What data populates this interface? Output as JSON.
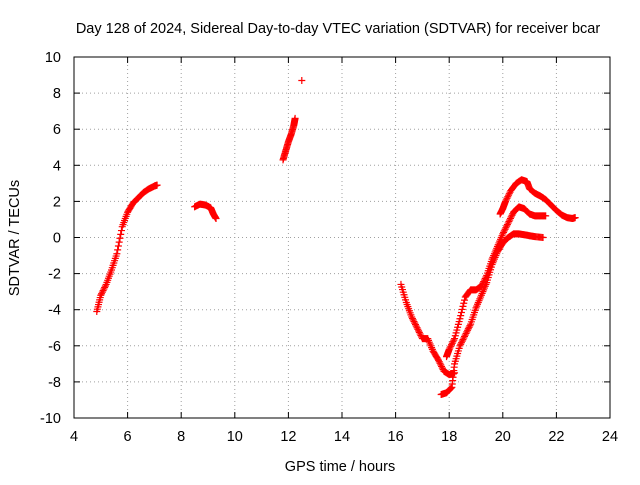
{
  "chart_data": {
    "type": "scatter",
    "title": "Day 128 of 2024, Sidereal Day-to-day VTEC variation (SDTVAR) for receiver bcar",
    "xlabel": "GPS time / hours",
    "ylabel": "SDTVAR / TECUs",
    "xlim": [
      4,
      24
    ],
    "ylim": [
      -10,
      10
    ],
    "x_ticks": [
      4,
      6,
      8,
      10,
      12,
      14,
      16,
      18,
      20,
      22,
      24
    ],
    "y_ticks": [
      10,
      8,
      6,
      4,
      2,
      0,
      -2,
      -4,
      -6,
      -8,
      -10
    ],
    "grid": true,
    "marker": "+",
    "color": "#ff0000",
    "series": [
      {
        "name": "segment-1",
        "x": [
          4.85,
          5.0,
          5.2,
          5.4,
          5.6,
          5.8,
          6.0,
          6.2,
          6.4,
          6.6,
          6.8,
          7.0,
          7.1
        ],
        "y": [
          -4.1,
          -3.2,
          -2.6,
          -1.8,
          -0.9,
          0.6,
          1.4,
          1.9,
          2.2,
          2.5,
          2.7,
          2.85,
          2.9
        ]
      },
      {
        "name": "segment-2",
        "x": [
          8.5,
          8.7,
          8.9,
          9.1,
          9.2,
          9.3
        ],
        "y": [
          1.7,
          1.85,
          1.8,
          1.65,
          1.3,
          1.05
        ]
      },
      {
        "name": "segment-3",
        "x": [
          11.8,
          11.9,
          12.0,
          12.1,
          12.2,
          12.25
        ],
        "y": [
          4.3,
          4.8,
          5.3,
          5.7,
          6.2,
          6.6
        ]
      },
      {
        "name": "segment-4",
        "x": [
          12.5
        ],
        "y": [
          8.7
        ]
      },
      {
        "name": "segment-5",
        "x": [
          16.2,
          16.4,
          16.6,
          16.8,
          17.0,
          17.2,
          17.4,
          17.6,
          17.8,
          18.0,
          18.2
        ],
        "y": [
          -2.6,
          -3.6,
          -4.4,
          -5.0,
          -5.6,
          -5.6,
          -6.3,
          -6.8,
          -7.4,
          -7.6,
          -7.5
        ]
      },
      {
        "name": "segment-6",
        "x": [
          17.7,
          17.9,
          18.1,
          18.2,
          18.4,
          18.6,
          18.8,
          19.0,
          19.2,
          19.4,
          19.6,
          19.8,
          20.0,
          20.2,
          20.4,
          20.6,
          20.8,
          21.0,
          21.2,
          21.5
        ],
        "y": [
          -8.7,
          -8.6,
          -8.3,
          -7.0,
          -6.0,
          -5.4,
          -4.8,
          -3.9,
          -3.2,
          -2.5,
          -1.5,
          -0.8,
          -0.3,
          0.0,
          0.2,
          0.2,
          0.15,
          0.1,
          0.05,
          0.0
        ]
      },
      {
        "name": "segment-7",
        "x": [
          17.9,
          18.0,
          18.2,
          18.4,
          18.6,
          18.8,
          19.0,
          19.2,
          19.4,
          19.6,
          19.8,
          20.0,
          20.2,
          20.4,
          20.6,
          20.8,
          21.0,
          21.2,
          21.4,
          21.6
        ],
        "y": [
          -6.6,
          -6.2,
          -5.6,
          -4.5,
          -3.3,
          -2.9,
          -2.9,
          -2.7,
          -2.1,
          -1.2,
          -0.5,
          0.2,
          0.8,
          1.4,
          1.7,
          1.6,
          1.3,
          1.2,
          1.2,
          1.2
        ]
      },
      {
        "name": "segment-8",
        "x": [
          19.9,
          20.0,
          20.1,
          20.3,
          20.5,
          20.7,
          20.9,
          21.0,
          21.2,
          21.4,
          21.6,
          21.8,
          22.0,
          22.2,
          22.4,
          22.6,
          22.7
        ],
        "y": [
          1.3,
          1.6,
          2.0,
          2.6,
          3.0,
          3.2,
          3.1,
          2.7,
          2.45,
          2.3,
          2.1,
          1.8,
          1.5,
          1.25,
          1.1,
          1.05,
          1.1
        ]
      }
    ]
  }
}
